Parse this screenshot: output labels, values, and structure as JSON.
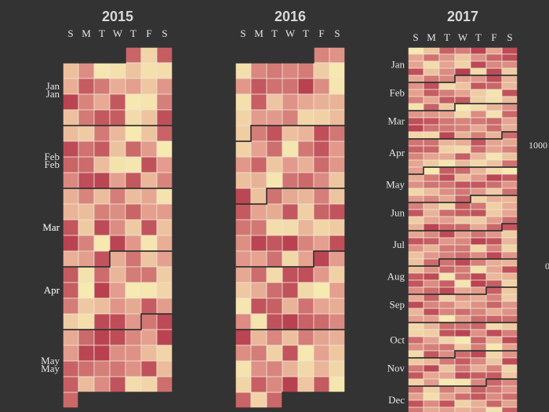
{
  "chart_data": {
    "type": "heatmap",
    "subtype": "calendar",
    "colors": {
      "low": "#f7ecb2",
      "mid": "#e39c8d",
      "high": "#b8404f",
      "background": "#333333",
      "text": "#e6e6e6"
    },
    "value_range": [
      0,
      1000
    ],
    "legend": {
      "ticks": [
        "1000",
        "0"
      ],
      "placement": "right"
    },
    "years": [
      {
        "title": "2015",
        "year": 2015,
        "start_month": 1,
        "end_month": 5,
        "layout": "tall",
        "weekday_labels": [
          "S",
          "M",
          "T",
          "W",
          "T",
          "F",
          "S"
        ],
        "month_labels": [
          "Jan",
          "Feb",
          "Mar",
          "Apr",
          "May"
        ]
      },
      {
        "title": "2016",
        "year": 2016,
        "start_month": 1,
        "end_month": 5,
        "layout": "tall",
        "weekday_labels": [
          "S",
          "M",
          "T",
          "W",
          "T",
          "F",
          "S"
        ],
        "month_labels": [
          "Jan",
          "Feb",
          "Mar",
          "Apr",
          "May"
        ]
      },
      {
        "title": "2017",
        "year": 2017,
        "start_month": 1,
        "end_month": 12,
        "layout": "compact",
        "weekday_labels": [
          "S",
          "M",
          "T",
          "W",
          "T",
          "F",
          "S"
        ],
        "month_labels": [
          "Jan",
          "Feb",
          "Mar",
          "Apr",
          "May",
          "Jun",
          "Jul",
          "Aug",
          "Sep",
          "Oct",
          "Nov",
          "Dec"
        ]
      }
    ]
  }
}
